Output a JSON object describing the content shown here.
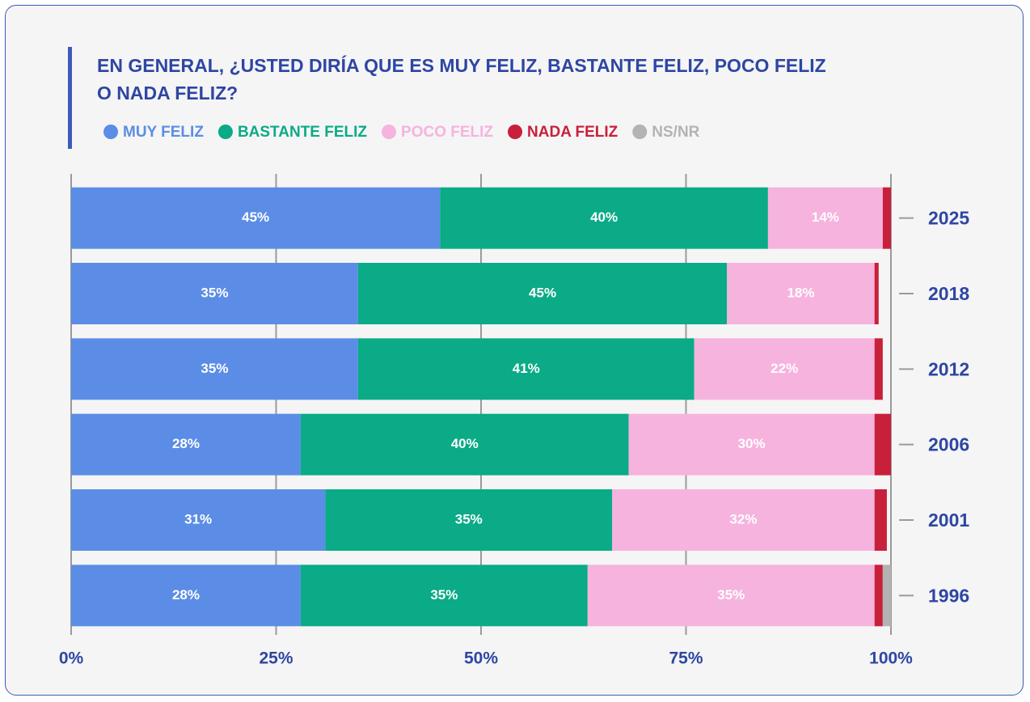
{
  "chart_data": {
    "type": "stacked-barh",
    "title": "EN GENERAL, ¿USTED DIRÍA QUE ES MUY FELIZ, BASTANTE FELIZ, POCO FELIZ O NADA FELIZ?",
    "categories": [
      "2025",
      "2018",
      "2012",
      "2006",
      "2001",
      "1996"
    ],
    "series": [
      {
        "name": "MUY FELIZ",
        "color": "#5b8de6",
        "values": [
          45,
          35,
          35,
          28,
          31,
          28
        ],
        "value_labels": [
          "45%",
          "35%",
          "35%",
          "28%",
          "31%",
          "28%"
        ]
      },
      {
        "name": "BASTANTE FELIZ",
        "color": "#0aab86",
        "values": [
          40,
          45,
          41,
          40,
          35,
          35
        ],
        "value_labels": [
          "40%",
          "45%",
          "41%",
          "40%",
          "35%",
          "35%"
        ]
      },
      {
        "name": "POCO FELIZ",
        "color": "#f6b3dd",
        "values": [
          14,
          18,
          22,
          30,
          32,
          35
        ],
        "value_labels": [
          "14%",
          "18%",
          "22%",
          "30%",
          "32%",
          "35%"
        ]
      },
      {
        "name": "NADA FELIZ",
        "color": "#c8203a",
        "values": [
          1,
          0.5,
          1,
          2,
          1.5,
          1
        ]
      },
      {
        "name": "NS/NR",
        "color": "#b3b3b3",
        "values": [
          0,
          0,
          0,
          0,
          0,
          1
        ]
      }
    ],
    "xlim": [
      0,
      100
    ],
    "xticks": [
      {
        "value": 0,
        "label": "0%"
      },
      {
        "value": 25,
        "label": "25%"
      },
      {
        "value": 50,
        "label": "50%"
      },
      {
        "value": 75,
        "label": "75%"
      },
      {
        "value": 100,
        "label": "100%"
      }
    ],
    "grid": true
  }
}
